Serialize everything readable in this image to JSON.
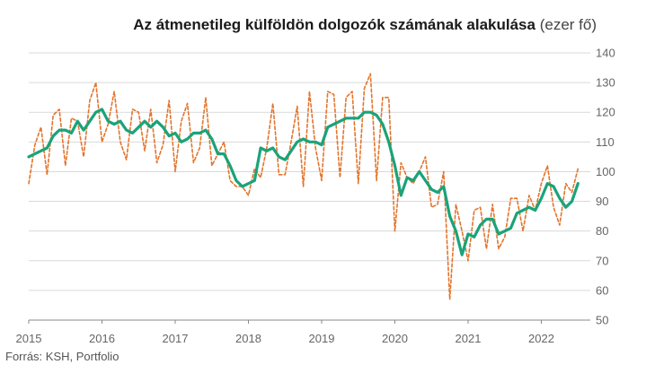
{
  "title": {
    "bold": "Az átmenetileg külföldön dolgozók számának alakulása",
    "unit": "(ezer fő)"
  },
  "source": "Forrás: KSH, Portfolio",
  "colors": {
    "trend": "#1aa37a",
    "monthly": "#e2752c",
    "grid": "#d9d9d9",
    "baseline": "#888888"
  },
  "chart_data": {
    "type": "line",
    "title": "Az átmenetileg külföldön dolgozók számának alakulása",
    "unit": "ezer fő",
    "ylim": [
      50,
      140
    ],
    "y_ticks": [
      "50",
      "60",
      "70",
      "80",
      "90",
      "100",
      "110",
      "120",
      "130",
      "140"
    ],
    "x_ticks": [
      "2015",
      "2016",
      "2017",
      "2018",
      "2019",
      "2020",
      "2021",
      "2022"
    ],
    "grid": true,
    "y_axis_side": "right",
    "x_start": "2015-01",
    "x_end": "2022-09",
    "series": [
      {
        "style": "dashed",
        "values": [
          96,
          109,
          115,
          99,
          119,
          121,
          102,
          118,
          117,
          105,
          124,
          130,
          110,
          116,
          127,
          110,
          104,
          121,
          120,
          107,
          121,
          103,
          109,
          124,
          100,
          117,
          123,
          103,
          108,
          125,
          102,
          106,
          110,
          97,
          95,
          95,
          92,
          101,
          98,
          108,
          123,
          99,
          99,
          110,
          122,
          95,
          127,
          108,
          97,
          127,
          126,
          98,
          125,
          127,
          96,
          128,
          133,
          97,
          125,
          125,
          80,
          103,
          98,
          96,
          100,
          105,
          88,
          89,
          100,
          57,
          89,
          80,
          70,
          87,
          88,
          74,
          89,
          74,
          78,
          91,
          91,
          80,
          92,
          87,
          96,
          102,
          88,
          82,
          96,
          93,
          101
        ]
      },
      {
        "style": "solid",
        "values": [
          105,
          106,
          107,
          108,
          112,
          114,
          114,
          113,
          117,
          114,
          117,
          120,
          121,
          117,
          116,
          117,
          114,
          113,
          115,
          117,
          115,
          117,
          115,
          112,
          113,
          110,
          111,
          113,
          113,
          114,
          111,
          106,
          106,
          102,
          97,
          95,
          96,
          97,
          108,
          107,
          108,
          105,
          104,
          107,
          110,
          111,
          110,
          110,
          109,
          115,
          116,
          117,
          118,
          118,
          118,
          120,
          120,
          119,
          116,
          110,
          102,
          92,
          98,
          97,
          100,
          97,
          94,
          93,
          95,
          85,
          80,
          72,
          79,
          78,
          82,
          84,
          84,
          79,
          80,
          81,
          86,
          87,
          88,
          87,
          91,
          96,
          95,
          91,
          88,
          90,
          96
        ]
      }
    ]
  }
}
